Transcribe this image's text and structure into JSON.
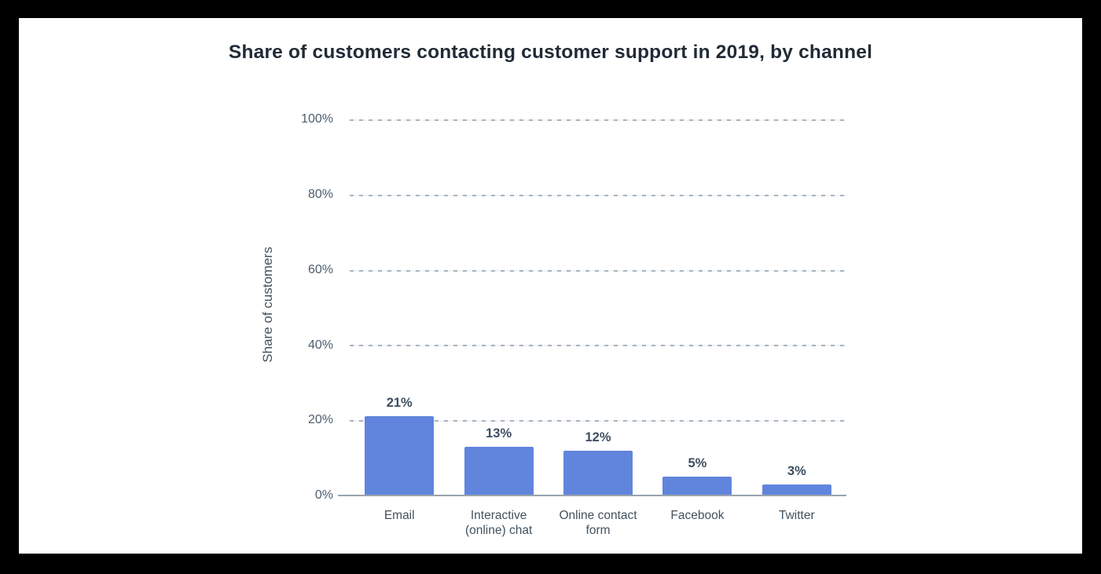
{
  "chart_data": {
    "type": "bar",
    "title": "Share of customers contacting customer support in 2019, by channel",
    "xlabel": "",
    "ylabel": "Share of customers",
    "categories": [
      "Email",
      "Interactive (online) chat",
      "Online contact form",
      "Facebook",
      "Twitter"
    ],
    "display_labels": [
      "Email",
      "Interactive\n(online) chat",
      "Online contact\nform",
      "Facebook",
      "Twitter"
    ],
    "values": [
      21,
      13,
      12,
      5,
      3
    ],
    "value_labels": [
      "21%",
      "13%",
      "12%",
      "5%",
      "3%"
    ],
    "y_ticks": [
      "100%",
      "80%",
      "60%",
      "40%",
      "20%",
      "0%"
    ],
    "ylim": [
      0,
      100
    ],
    "grid": "horizontal-dashed",
    "legend": "none",
    "colors": {
      "bar": "#6185dd",
      "title": "#212b36",
      "tick_label": "#4d5d6e",
      "value_label": "#3e4e62",
      "gridline": "#a7b4c0",
      "axis_line": "#9aa4ae",
      "frame": "#000000",
      "background": "#ffffff"
    }
  }
}
